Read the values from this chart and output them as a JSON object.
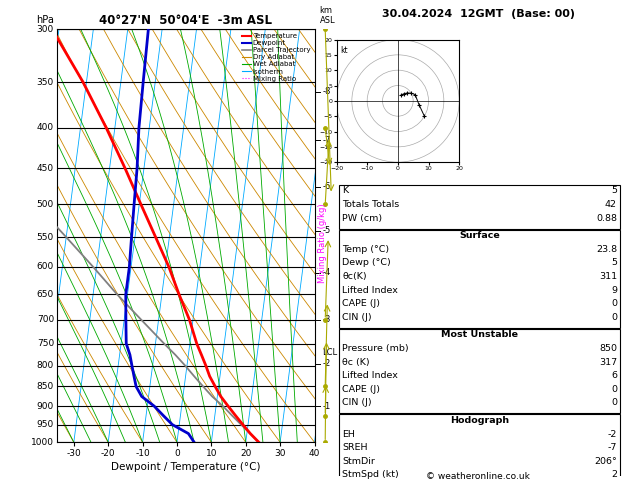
{
  "title_left": "40°27'N  50°04'E  -3m ASL",
  "title_right": "30.04.2024  12GMT  (Base: 00)",
  "xlabel": "Dewpoint / Temperature (°C)",
  "ylabel_left": "hPa",
  "pressure_levels": [
    300,
    350,
    400,
    450,
    500,
    550,
    600,
    650,
    700,
    750,
    800,
    850,
    900,
    950,
    1000
  ],
  "temp_color": "#ff0000",
  "dewp_color": "#0000cc",
  "parcel_color": "#808080",
  "dry_adiabat_color": "#cc8800",
  "wet_adiabat_color": "#00aa00",
  "isotherm_color": "#00aaff",
  "mixing_ratio_color": "#ff00ff",
  "background_color": "#ffffff",
  "x_min": -35,
  "x_max": 40,
  "p_min": 300,
  "p_max": 1000,
  "skew_factor": 30,
  "temp_data": {
    "pressure": [
      1000,
      975,
      950,
      925,
      900,
      875,
      850,
      825,
      800,
      775,
      750,
      700,
      650,
      600,
      550,
      500,
      450,
      400,
      350,
      300
    ],
    "temp": [
      23.8,
      21.0,
      18.5,
      16.0,
      13.5,
      11.0,
      9.0,
      7.0,
      5.5,
      3.8,
      2.0,
      -1.0,
      -5.0,
      -9.0,
      -14.0,
      -19.5,
      -25.5,
      -32.5,
      -41.0,
      -52.0
    ]
  },
  "dewp_data": {
    "pressure": [
      1000,
      975,
      950,
      925,
      900,
      875,
      850,
      825,
      800,
      775,
      750,
      700,
      650,
      600,
      550,
      500,
      450,
      400,
      350,
      300
    ],
    "dewp": [
      5.0,
      3.0,
      -2.0,
      -5.0,
      -8.0,
      -12.0,
      -14.0,
      -15.0,
      -16.0,
      -17.0,
      -18.5,
      -19.5,
      -20.5,
      -20.5,
      -21.0,
      -21.5,
      -22.0,
      -23.0,
      -23.5,
      -24.0
    ]
  },
  "parcel_data": {
    "pressure": [
      1000,
      975,
      950,
      925,
      900,
      875,
      850,
      825,
      800,
      775,
      750,
      700,
      650,
      600,
      550,
      500,
      450,
      400,
      350,
      300
    ],
    "temp": [
      23.8,
      21.0,
      18.0,
      15.0,
      12.0,
      8.5,
      5.5,
      2.5,
      -0.5,
      -3.8,
      -7.5,
      -15.0,
      -23.0,
      -31.0,
      -40.0,
      -50.0,
      -55.0,
      -57.0,
      -59.0,
      -62.0
    ]
  },
  "mixing_ratios": [
    1,
    2,
    3,
    4,
    6,
    8,
    10,
    16,
    20,
    25
  ],
  "km_levels": {
    "1": 900,
    "2": 795,
    "3": 700,
    "4": 610,
    "5": 540,
    "6": 475,
    "7": 415,
    "8": 360
  },
  "lcl_pressure": 770,
  "info_lines_top": [
    [
      "K",
      "5"
    ],
    [
      "Totals Totals",
      "42"
    ],
    [
      "PW (cm)",
      "0.88"
    ]
  ],
  "surface_lines": [
    [
      "Temp (°C)",
      "23.8"
    ],
    [
      "Dewp (°C)",
      "5"
    ],
    [
      "θᴄ(K)",
      "311"
    ],
    [
      "Lifted Index",
      "9"
    ],
    [
      "CAPE (J)",
      "0"
    ],
    [
      "CIN (J)",
      "0"
    ]
  ],
  "mu_lines": [
    [
      "Pressure (mb)",
      "850"
    ],
    [
      "θᴄ (K)",
      "317"
    ],
    [
      "Lifted Index",
      "6"
    ],
    [
      "CAPE (J)",
      "0"
    ],
    [
      "CIN (J)",
      "0"
    ]
  ],
  "hodo_lines": [
    [
      "EH",
      "-2"
    ],
    [
      "SREH",
      "-7"
    ],
    [
      "StmDir",
      "206°"
    ],
    [
      "StmSpd (kt)",
      "2"
    ]
  ],
  "wind_data": [
    {
      "pressure": 1000,
      "speed": 2,
      "dir": 206
    },
    {
      "pressure": 925,
      "speed": 3,
      "dir": 220
    },
    {
      "pressure": 850,
      "speed": 4,
      "dir": 230
    },
    {
      "pressure": 700,
      "speed": 5,
      "dir": 240
    },
    {
      "pressure": 500,
      "speed": 6,
      "dir": 250
    },
    {
      "pressure": 400,
      "speed": 7,
      "dir": 280
    },
    {
      "pressure": 300,
      "speed": 10,
      "dir": 300
    }
  ],
  "footer": "© weatheronline.co.uk"
}
